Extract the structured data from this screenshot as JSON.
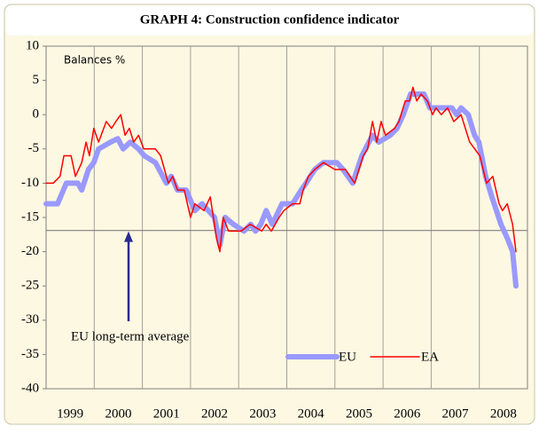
{
  "chart_data": {
    "type": "line",
    "title": "GRAPH 4: Construction confidence indicator",
    "y_label": "Balances %",
    "ylim": [
      -40,
      10
    ],
    "yticks": [
      10,
      5,
      0,
      -5,
      -10,
      -15,
      -20,
      -25,
      -30,
      -35,
      -40
    ],
    "xlim": [
      1999,
      2009
    ],
    "xticks": [
      {
        "value": 1999.5,
        "label": "1999"
      },
      {
        "value": 2000.5,
        "label": "2000"
      },
      {
        "value": 2001.5,
        "label": "2001"
      },
      {
        "value": 2002.5,
        "label": "2002"
      },
      {
        "value": 2003.5,
        "label": "2003"
      },
      {
        "value": 2004.5,
        "label": "2004"
      },
      {
        "value": 2005.5,
        "label": "2005"
      },
      {
        "value": 2006.5,
        "label": "2006"
      },
      {
        "value": 2007.5,
        "label": "2007"
      },
      {
        "value": 2008.5,
        "label": "2008"
      }
    ],
    "xgrid": [
      2000,
      2001,
      2002,
      2003,
      2004,
      2005,
      2006,
      2007,
      2008
    ],
    "legend": "lower right",
    "series": [
      {
        "name": "EU",
        "color": "#9999ff",
        "width": 6,
        "x": [
          1999.0,
          1999.24,
          1999.42,
          1999.66,
          1999.74,
          1999.88,
          1999.99,
          2000.09,
          2000.34,
          2000.49,
          2000.6,
          2000.75,
          2000.92,
          2001.04,
          2001.27,
          2001.5,
          2001.6,
          2001.73,
          2001.91,
          2002.09,
          2002.24,
          2002.37,
          2002.5,
          2002.61,
          2002.72,
          2002.89,
          2003.11,
          2003.25,
          2003.35,
          2003.46,
          2003.57,
          2003.7,
          2003.9,
          2004.12,
          2004.3,
          2004.4,
          2004.58,
          2004.76,
          2005.04,
          2005.17,
          2005.37,
          2005.56,
          2005.78,
          2005.91,
          2006.15,
          2006.29,
          2006.42,
          2006.57,
          2006.85,
          2006.97,
          2007.43,
          2007.53,
          2007.62,
          2007.77,
          2007.9,
          2007.99,
          2008.13,
          2008.26,
          2008.45,
          2008.58,
          2008.69,
          2008.76
        ],
        "values": [
          -13,
          -13,
          -10,
          -10,
          -11,
          -8,
          -7,
          -5,
          -4,
          -3.5,
          -5,
          -4,
          -5,
          -6,
          -7,
          -10,
          -9,
          -11,
          -11,
          -14,
          -13,
          -14,
          -15,
          -19,
          -15,
          -16,
          -17,
          -16,
          -17,
          -16,
          -14,
          -16,
          -13,
          -13,
          -11,
          -10,
          -8,
          -7,
          -7,
          -8,
          -10,
          -6,
          -3,
          -4,
          -3,
          -2,
          0,
          3,
          3,
          1,
          1,
          0,
          1,
          0,
          -3,
          -4,
          -9,
          -12,
          -16,
          -18,
          -20,
          -25
        ]
      },
      {
        "name": "EA",
        "color": "#ff0000",
        "width": 1.5,
        "x": [
          1999.0,
          1999.15,
          1999.29,
          1999.37,
          1999.52,
          1999.61,
          1999.74,
          1999.83,
          1999.9,
          1999.99,
          2000.09,
          2000.25,
          2000.36,
          2000.45,
          2000.55,
          2000.64,
          2000.73,
          2000.82,
          2000.92,
          2001.03,
          2001.27,
          2001.38,
          2001.54,
          2001.63,
          2001.73,
          2001.87,
          2002.0,
          2002.09,
          2002.28,
          2002.41,
          2002.54,
          2002.61,
          2002.68,
          2002.79,
          2003.05,
          2003.24,
          2003.48,
          2003.57,
          2003.68,
          2003.84,
          2003.94,
          2004.12,
          2004.27,
          2004.34,
          2004.45,
          2004.58,
          2004.76,
          2005.0,
          2005.22,
          2005.41,
          2005.59,
          2005.68,
          2005.78,
          2005.87,
          2005.96,
          2006.05,
          2006.24,
          2006.33,
          2006.46,
          2006.55,
          2006.62,
          2006.7,
          2006.79,
          2006.92,
          2007.03,
          2007.1,
          2007.21,
          2007.34,
          2007.47,
          2007.62,
          2007.8,
          2008.01,
          2008.15,
          2008.28,
          2008.41,
          2008.48,
          2008.58,
          2008.69,
          2008.76
        ],
        "values": [
          -10,
          -10,
          -9,
          -6,
          -6,
          -9,
          -7,
          -4,
          -6,
          -2,
          -4,
          -1,
          -2,
          -1,
          0,
          -3,
          -2,
          -4,
          -3,
          -5,
          -5,
          -6,
          -10,
          -9,
          -11,
          -11,
          -15,
          -13,
          -14,
          -12,
          -18,
          -20,
          -15,
          -17,
          -17,
          -16,
          -17,
          -16,
          -17,
          -15,
          -14,
          -13,
          -13,
          -11,
          -9,
          -8,
          -7,
          -8,
          -8,
          -10,
          -6,
          -5,
          -1,
          -4,
          -1,
          -3,
          -2,
          -1,
          2,
          2,
          4,
          2,
          3,
          2,
          0,
          1,
          0,
          1,
          -1,
          0,
          -4,
          -6,
          -10,
          -9,
          -13,
          -14,
          -13,
          -16,
          -20
        ]
      }
    ],
    "reference": {
      "text": "EU long-term average",
      "value": -16.9
    }
  }
}
